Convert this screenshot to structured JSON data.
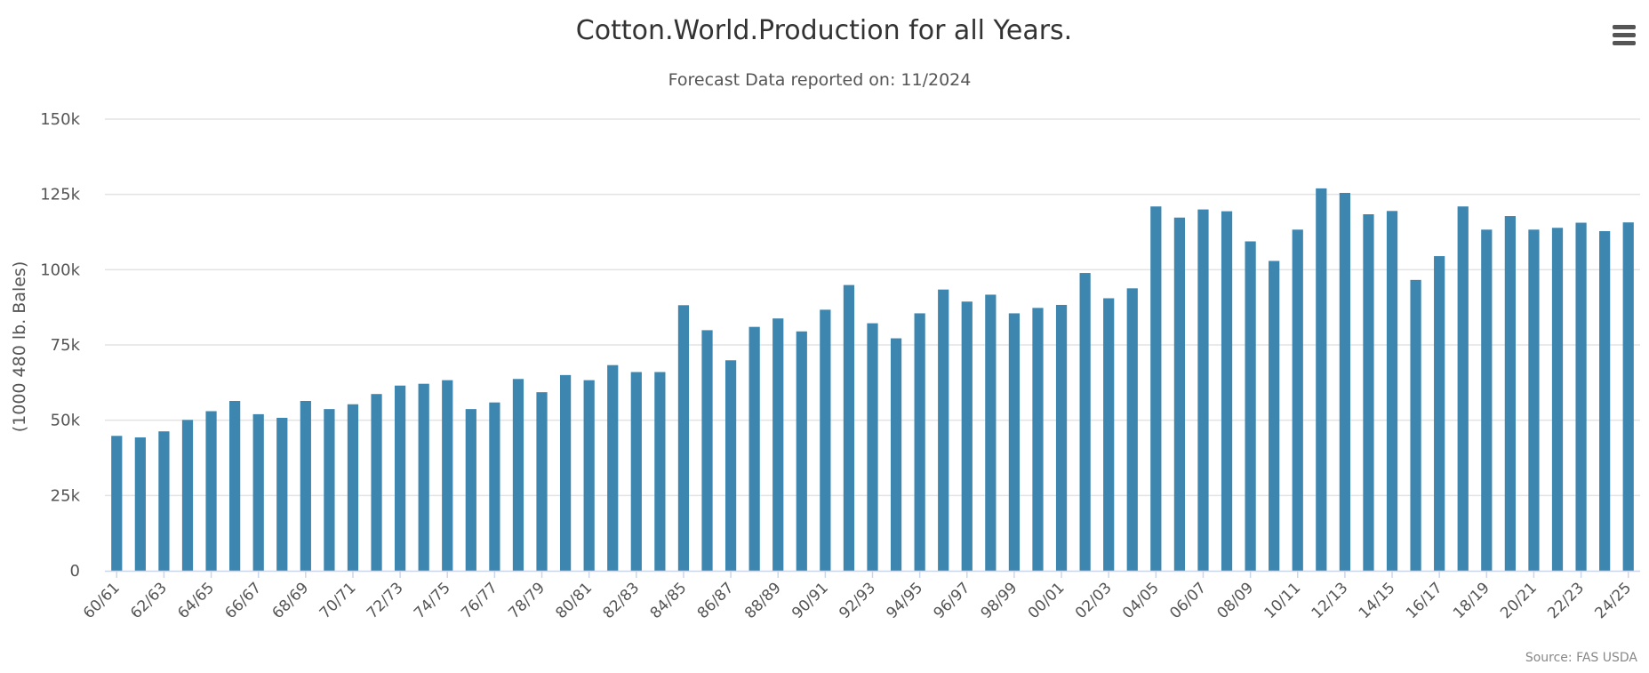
{
  "chart_data": {
    "type": "bar",
    "title": "Cotton.World.Production for all Years.",
    "subtitle": "Forecast Data reported on: 11/2024",
    "ylabel": "(1000 480 lb. Bales)",
    "xlabel": "",
    "ylim": [
      0,
      150000
    ],
    "yticks": [
      0,
      25000,
      50000,
      75000,
      100000,
      125000,
      150000
    ],
    "ytick_labels": [
      "0",
      "25k",
      "50k",
      "75k",
      "100k",
      "125k",
      "150k"
    ],
    "grid": true,
    "legend": "none",
    "bar_color": "#3d86b0",
    "credits": "Source: FAS USDA",
    "categories": [
      "60/61",
      "61/62",
      "62/63",
      "63/64",
      "64/65",
      "65/66",
      "66/67",
      "67/68",
      "68/69",
      "69/70",
      "70/71",
      "71/72",
      "72/73",
      "73/74",
      "74/75",
      "75/76",
      "76/77",
      "77/78",
      "78/79",
      "79/80",
      "80/81",
      "81/82",
      "82/83",
      "83/84",
      "84/85",
      "85/86",
      "86/87",
      "87/88",
      "88/89",
      "89/90",
      "90/91",
      "91/92",
      "92/93",
      "93/94",
      "94/95",
      "95/96",
      "96/97",
      "97/98",
      "98/99",
      "99/00",
      "00/01",
      "01/02",
      "02/03",
      "03/04",
      "04/05",
      "05/06",
      "06/07",
      "07/08",
      "08/09",
      "09/10",
      "10/11",
      "11/12",
      "12/13",
      "13/14",
      "14/15",
      "15/16",
      "16/17",
      "17/18",
      "18/19",
      "19/20",
      "20/21",
      "21/22",
      "22/23",
      "23/24",
      "24/25"
    ],
    "tick_labels_shown": [
      "60/61",
      "62/63",
      "64/65",
      "66/67",
      "68/69",
      "70/71",
      "72/73",
      "74/75",
      "76/77",
      "78/79",
      "80/81",
      "82/83",
      "84/85",
      "86/87",
      "88/89",
      "90/91",
      "92/93",
      "94/95",
      "96/97",
      "98/99",
      "00/01",
      "02/03",
      "04/05",
      "06/07",
      "08/09",
      "10/11",
      "12/13",
      "14/15",
      "16/17",
      "18/19",
      "20/21",
      "22/23",
      "24/25"
    ],
    "values": [
      44800,
      44300,
      46300,
      50100,
      53000,
      56400,
      52000,
      50800,
      56400,
      53700,
      55300,
      58700,
      61500,
      62100,
      63300,
      53700,
      55900,
      63700,
      59300,
      65000,
      63300,
      68300,
      66000,
      66000,
      88200,
      79900,
      69900,
      81000,
      83800,
      79500,
      86700,
      94900,
      82200,
      77200,
      85500,
      93400,
      89400,
      91700,
      85500,
      87300,
      88300,
      98900,
      90500,
      93800,
      121000,
      117300,
      120000,
      119400,
      109400,
      102900,
      113300,
      127000,
      125500,
      118400,
      119500,
      96600,
      104500,
      121000,
      113300,
      117800,
      113300,
      113900,
      115600,
      112800,
      115700
    ]
  },
  "ui": {
    "menu_icon": "hamburger-menu-icon"
  }
}
